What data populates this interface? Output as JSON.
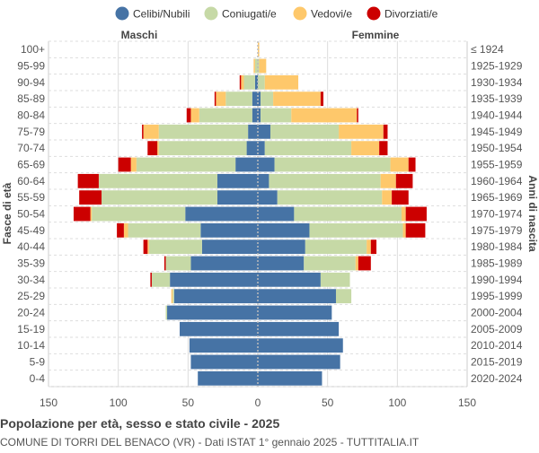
{
  "chart_data": {
    "type": "bar",
    "orientation": "horizontal-pyramid",
    "title": "Popolazione per età, sesso e stato civile - 2025",
    "subtitle": "COMUNE DI TORRI DEL BENACO (VR) - Dati ISTAT 1° gennaio 2025 - TUTTITALIA.IT",
    "left_label": "Maschi",
    "right_label": "Femmine",
    "ylabel_left": "Fasce di età",
    "ylabel_right": "Anni di nascita",
    "xlim": [
      -150,
      150
    ],
    "xticks": [
      "150",
      "100",
      "50",
      "0",
      "50",
      "100",
      "150"
    ],
    "xtick_values": [
      -150,
      -100,
      -50,
      0,
      50,
      100,
      150
    ],
    "grid": true,
    "legend_position": "top",
    "categories": [
      "100+",
      "95-99",
      "90-94",
      "85-89",
      "80-84",
      "75-79",
      "70-74",
      "65-69",
      "60-64",
      "55-59",
      "50-54",
      "45-49",
      "40-44",
      "35-39",
      "30-34",
      "25-29",
      "20-24",
      "15-19",
      "10-14",
      "5-9",
      "0-4"
    ],
    "birth_years": [
      "≤ 1924",
      "1925-1929",
      "1930-1934",
      "1935-1939",
      "1940-1944",
      "1945-1949",
      "1950-1954",
      "1955-1959",
      "1960-1964",
      "1965-1969",
      "1970-1974",
      "1975-1979",
      "1980-1984",
      "1985-1989",
      "1990-1994",
      "1995-1999",
      "2000-2004",
      "2005-2009",
      "2010-2014",
      "2015-2019",
      "2020-2024"
    ],
    "series": [
      {
        "name": "Celibi/Nubili",
        "color": "#4673a5",
        "male": [
          0,
          0,
          2,
          4,
          4,
          7,
          8,
          16,
          29,
          29,
          52,
          41,
          40,
          48,
          63,
          60,
          65,
          56,
          49,
          48,
          43
        ],
        "female": [
          0,
          0,
          0,
          2,
          2,
          9,
          5,
          12,
          8,
          14,
          26,
          37,
          34,
          33,
          45,
          56,
          53,
          58,
          61,
          59,
          46
        ]
      },
      {
        "name": "Coniugati/e",
        "color": "#c6d9a6",
        "male": [
          0,
          2,
          8,
          19,
          38,
          64,
          63,
          71,
          85,
          83,
          67,
          52,
          38,
          18,
          13,
          1,
          1,
          0,
          0,
          0,
          0
        ],
        "female": [
          0,
          1,
          5,
          9,
          22,
          49,
          62,
          83,
          80,
          75,
          77,
          67,
          44,
          37,
          21,
          11,
          0,
          0,
          0,
          0,
          0
        ]
      },
      {
        "name": "Vedovi/e",
        "color": "#fec86b",
        "male": [
          0,
          1,
          2,
          7,
          6,
          11,
          1,
          4,
          0,
          0,
          1,
          3,
          1,
          0,
          0,
          1,
          0,
          0,
          0,
          0,
          0
        ],
        "female": [
          1,
          5,
          24,
          34,
          47,
          32,
          20,
          13,
          11,
          7,
          3,
          2,
          3,
          2,
          0,
          0,
          0,
          0,
          0,
          0,
          0
        ]
      },
      {
        "name": "Divorziati/e",
        "color": "#cc0000",
        "male": [
          0,
          0,
          1,
          1,
          3,
          1,
          7,
          9,
          15,
          16,
          12,
          5,
          3,
          1,
          1,
          0,
          0,
          0,
          0,
          0,
          0
        ],
        "female": [
          0,
          0,
          0,
          2,
          1,
          3,
          6,
          5,
          12,
          12,
          15,
          14,
          4,
          9,
          0,
          0,
          0,
          0,
          0,
          0,
          0
        ]
      }
    ]
  }
}
